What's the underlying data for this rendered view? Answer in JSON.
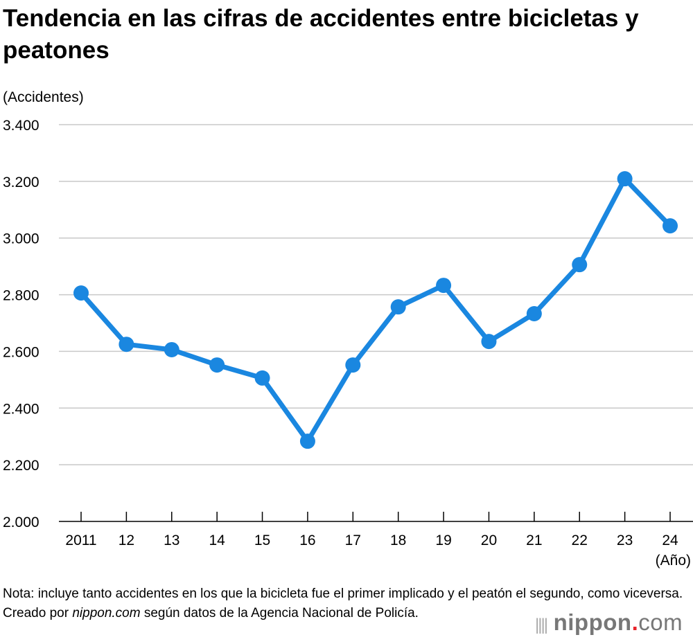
{
  "title": "Tendencia en las cifras de accidentes entre bicicletas y peatones",
  "note_parts": [
    "Nota: incluye tanto accidentes en los que la bicicleta fue el primer implicado y el peatón el segundo, como viceversa. Creado por ",
    "nippon.com",
    " según datos de la Agencia Nacional de Policía."
  ],
  "logo": {
    "name": "nippon",
    "dot": ".",
    "com": "com"
  },
  "chart_data": {
    "type": "line",
    "title": "",
    "ylabel": "(Accidentes)",
    "xlabel": "(Año)",
    "categories": [
      "2011",
      "12",
      "13",
      "14",
      "15",
      "16",
      "17",
      "18",
      "19",
      "20",
      "21",
      "22",
      "23",
      "24"
    ],
    "values": [
      2806,
      2625,
      2606,
      2552,
      2506,
      2283,
      2552,
      2757,
      2833,
      2635,
      2733,
      2906,
      3209,
      3043
    ],
    "ylim": [
      2000,
      3400
    ],
    "yticks": [
      "2.000",
      "2.200",
      "2.400",
      "2.600",
      "2.800",
      "3.000",
      "3.200",
      "3.400"
    ],
    "grid": true,
    "color": "#1a87e0"
  }
}
